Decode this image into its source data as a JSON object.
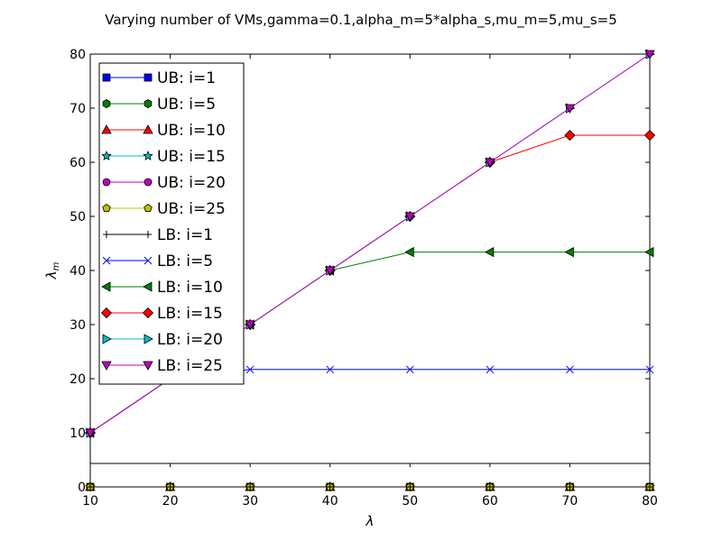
{
  "chart_data": {
    "type": "line",
    "title": "Varying number of VMs,gamma=0.1,alpha_m=5*alpha_s,mu_m=5,mu_s=5",
    "xlabel": "λ",
    "ylabel": "λ",
    "ylabel_subscript": "m",
    "xlim": [
      10,
      80
    ],
    "ylim": [
      0,
      80
    ],
    "grid": false,
    "legend_position": "top-left",
    "x": [
      10,
      20,
      30,
      40,
      50,
      60,
      70,
      80
    ],
    "x_ticks": [
      "10",
      "20",
      "30",
      "40",
      "50",
      "60",
      "70",
      "80"
    ],
    "y_ticks": [
      "0",
      "10",
      "20",
      "30",
      "40",
      "50",
      "60",
      "70",
      "80"
    ],
    "series": [
      {
        "name": "UB: i=1",
        "color": "#0000ff",
        "marker": "square",
        "values": [
          0,
          0,
          0,
          0,
          0,
          0,
          0,
          0
        ]
      },
      {
        "name": "UB: i=5",
        "color": "#008000",
        "marker": "hexagon",
        "values": [
          0,
          0,
          0,
          0,
          0,
          0,
          0,
          0
        ]
      },
      {
        "name": "UB: i=10",
        "color": "#ff0000",
        "marker": "triangle-up",
        "values": [
          0,
          0,
          0,
          0,
          0,
          0,
          0,
          0
        ]
      },
      {
        "name": "UB: i=15",
        "color": "#00bfbf",
        "marker": "star",
        "values": [
          0,
          0,
          0,
          0,
          0,
          0,
          0,
          0
        ]
      },
      {
        "name": "UB: i=20",
        "color": "#bf00bf",
        "marker": "circle",
        "values": [
          0,
          0,
          0,
          0,
          0,
          0,
          0,
          0
        ]
      },
      {
        "name": "UB: i=25",
        "color": "#bfbf00",
        "marker": "pentagon",
        "values": [
          0,
          0,
          0,
          0,
          0,
          0,
          0,
          0
        ]
      },
      {
        "name": "LB: i=1",
        "color": "#000000",
        "marker": "plus",
        "values": [
          0,
          0,
          0,
          0,
          0,
          0,
          0,
          0
        ]
      },
      {
        "name": "LB: i=5",
        "color": "#0000ff",
        "marker": "x",
        "values": [
          10,
          20,
          21.7,
          21.7,
          21.7,
          21.7,
          21.7,
          21.7
        ]
      },
      {
        "name": "LB: i=10",
        "color": "#008000",
        "marker": "triangle-left",
        "values": [
          10,
          20,
          30,
          40,
          43.4,
          43.4,
          43.4,
          43.4
        ]
      },
      {
        "name": "LB: i=15",
        "color": "#ff0000",
        "marker": "diamond",
        "values": [
          10,
          20,
          30,
          40,
          50,
          60,
          65,
          65
        ]
      },
      {
        "name": "LB: i=20",
        "color": "#00bfbf",
        "marker": "triangle-right",
        "values": [
          10,
          20,
          30,
          40,
          50,
          60,
          70,
          80
        ]
      },
      {
        "name": "LB: i=25",
        "color": "#bf00bf",
        "marker": "triangle-down",
        "values": [
          10,
          20,
          30,
          40,
          50,
          60,
          70,
          80
        ]
      }
    ]
  }
}
